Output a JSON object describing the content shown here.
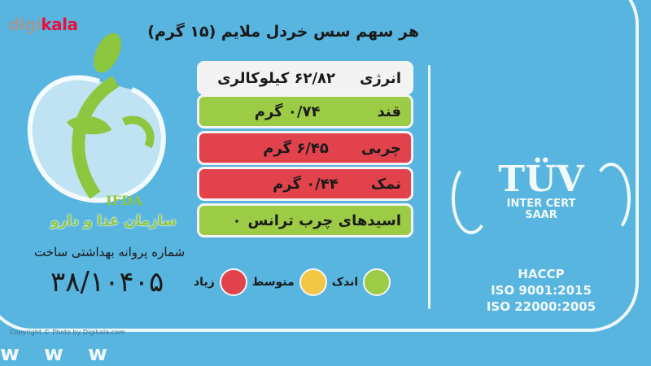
{
  "watermark": {
    "brand_prefix": "digi",
    "brand_suffix": "kala",
    "copyright": "Copyright ©  Photo by Digikala.com"
  },
  "label": {
    "title": "هر سهم سس خردل ملایم (۱۵ گرم)",
    "rows": [
      {
        "name": "انرژی",
        "value": "۶۲/۸۲ کیلوکالری",
        "level": "none",
        "color": "#f3f3f3"
      },
      {
        "name": "قند",
        "value": "۰/۷۴ گرم",
        "level": "low",
        "color": "#9ccc45"
      },
      {
        "name": "چربی",
        "value": "۶/۴۵ گرم",
        "level": "high",
        "color": "#e2424b"
      },
      {
        "name": "نمک",
        "value": "۰/۴۴ گرم",
        "level": "high",
        "color": "#e2424b"
      },
      {
        "name": "اسیدهای چرب ترانس",
        "value": "۰",
        "level": "low",
        "color": "#9ccc45"
      }
    ],
    "legend": [
      {
        "label": "اندک",
        "color": "#9ccc45"
      },
      {
        "label": "متوسط",
        "color": "#f2c744"
      },
      {
        "label": "زیاد",
        "color": "#e2424b"
      }
    ]
  },
  "ifda": {
    "abbr": "IFDA",
    "org": "سازمان غذا و دارو",
    "license_label": "شماره پروانه بهداشتی ساخت",
    "license_number": "۳۸/۱۰۴۰۵"
  },
  "certification": {
    "tuv": "TÜV",
    "tuv_sub1": "INTER CERT",
    "tuv_sub2": "SAAR",
    "lines": [
      "HACCP",
      "ISO 9001:2015",
      "ISO 22000:2005"
    ]
  },
  "bottom_text": "www"
}
